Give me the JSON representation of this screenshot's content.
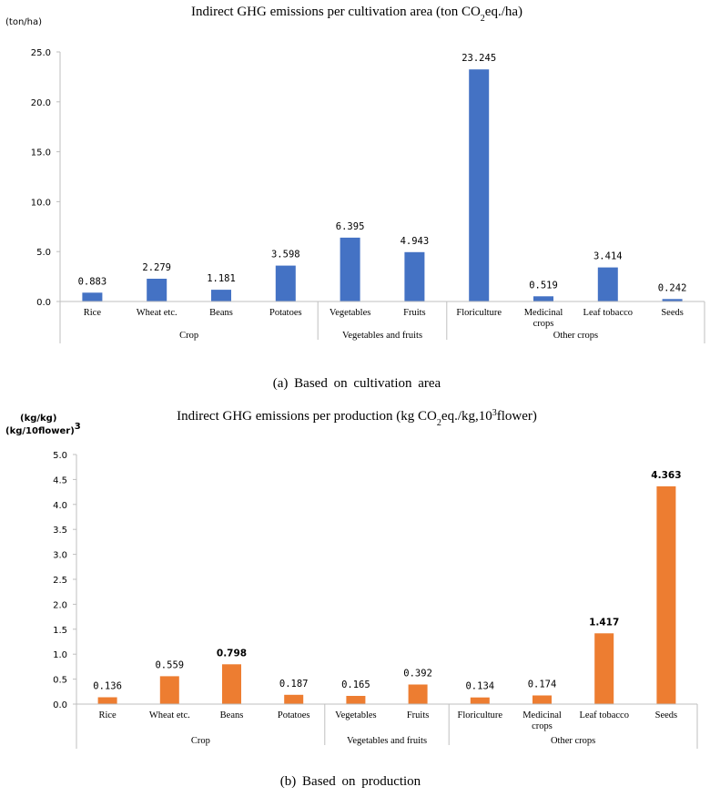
{
  "chart_data": [
    {
      "type": "bar",
      "title": {
        "pre": "Indirect GHG emissions per cultivation area (ton CO",
        "sub": "2",
        "post": "eq./ha)"
      },
      "ylabel": "(ton/ha)",
      "ylim": [
        0,
        25
      ],
      "yticks": [
        "0.0",
        "5.0",
        "10.0",
        "15.0",
        "20.0",
        "25.0"
      ],
      "ytick_values": [
        0,
        5,
        10,
        15,
        20,
        25
      ],
      "color": "#4472c4",
      "categories": [
        [
          "Rice"
        ],
        [
          "Wheat etc."
        ],
        [
          "Beans"
        ],
        [
          "Potatoes"
        ],
        [
          "Vegetables"
        ],
        [
          "Fruits"
        ],
        [
          "Floriculture"
        ],
        [
          "Medicinal",
          "crops"
        ],
        [
          "Leaf tobacco"
        ],
        [
          "Seeds"
        ]
      ],
      "values": [
        0.883,
        2.279,
        1.181,
        3.598,
        6.395,
        4.943,
        23.245,
        0.519,
        3.414,
        0.242
      ],
      "value_labels": [
        "0.883",
        "2.279",
        "1.181",
        "3.598",
        "6.395",
        "4.943",
        "23.245",
        "0.519",
        "3.414",
        "0.242"
      ],
      "groups": [
        {
          "label": "Crop",
          "count": 4
        },
        {
          "label": "Vegetables and fruits",
          "count": 2
        },
        {
          "label": "Other crops",
          "count": 4
        }
      ],
      "caption": "(a) Based on cultivation area"
    },
    {
      "type": "bar",
      "title": {
        "pre": "Indirect GHG emissions per production (kg CO",
        "sub": "2",
        "post": "eq./kg,10",
        "sup": "3",
        "post2": "flower)"
      },
      "ylabel_lines": [
        {
          "pre": "(kg/kg)"
        },
        {
          "pre": "(kg/10",
          "sup": "3",
          "post": "flower)"
        }
      ],
      "ylim": [
        0,
        5
      ],
      "yticks": [
        "0.0",
        "0.5",
        "1.0",
        "1.5",
        "2.0",
        "2.5",
        "3.0",
        "3.5",
        "4.0",
        "4.5",
        "5.0"
      ],
      "ytick_values": [
        0,
        0.5,
        1,
        1.5,
        2,
        2.5,
        3,
        3.5,
        4,
        4.5,
        5
      ],
      "color": "#ed7d31",
      "categories": [
        [
          "Rice"
        ],
        [
          "Wheat etc."
        ],
        [
          "Beans"
        ],
        [
          "Potatoes"
        ],
        [
          "Vegetables"
        ],
        [
          "Fruits"
        ],
        [
          "Floriculture"
        ],
        [
          "Medicinal",
          "crops"
        ],
        [
          "Leaf tobacco"
        ],
        [
          "Seeds"
        ]
      ],
      "values": [
        0.136,
        0.559,
        0.798,
        0.187,
        0.165,
        0.392,
        0.134,
        0.174,
        1.417,
        4.363
      ],
      "value_labels": [
        "0.136",
        "0.559",
        "0.798",
        "0.187",
        "0.165",
        "0.392",
        "0.134",
        "0.174",
        "1.417",
        "4.363"
      ],
      "groups": [
        {
          "label": "Crop",
          "count": 4
        },
        {
          "label": "Vegetables and fruits",
          "count": 2
        },
        {
          "label": "Other crops",
          "count": 4
        }
      ],
      "caption": "(b) Based on production"
    }
  ]
}
